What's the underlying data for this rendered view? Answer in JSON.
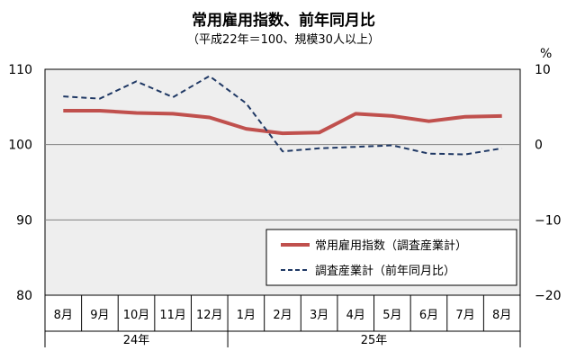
{
  "chart_data": {
    "type": "line",
    "title": "常用雇用指数、前年同月比",
    "subtitle": "（平成22年＝100、規模30人以上）",
    "y_right_unit": "%",
    "categories": [
      "8月",
      "9月",
      "10月",
      "11月",
      "12月",
      "1月",
      "2月",
      "3月",
      "4月",
      "5月",
      "6月",
      "7月",
      "8月"
    ],
    "year_groups": [
      {
        "label": "24年",
        "start_index": 0,
        "end_index": 4
      },
      {
        "label": "25年",
        "start_index": 5,
        "end_index": 12
      }
    ],
    "y_left": {
      "min": 80,
      "max": 110,
      "ticks": [
        "80",
        "90",
        "100",
        "110"
      ]
    },
    "y_right": {
      "min": -20,
      "max": 10,
      "ticks": [
        "−20",
        "−10",
        "0",
        "10"
      ]
    },
    "series": [
      {
        "name": "常用雇用指数（調査産業計）",
        "axis": "left",
        "color": "#c0504d",
        "style": "solid",
        "values": [
          104.5,
          104.5,
          104.2,
          104.1,
          103.6,
          102.1,
          101.5,
          101.6,
          104.1,
          103.8,
          103.1,
          103.7,
          103.8
        ]
      },
      {
        "name": "調査産業計（前年同月比）",
        "axis": "right",
        "color": "#1f3864",
        "style": "dashed",
        "values": [
          6.4,
          6.1,
          8.4,
          6.3,
          9.1,
          5.5,
          -0.9,
          -0.5,
          -0.3,
          -0.1,
          -1.2,
          -1.3,
          -0.5
        ]
      }
    ],
    "grid": "horizontal-y-ticks",
    "legend_position": "bottom-right-inside"
  }
}
